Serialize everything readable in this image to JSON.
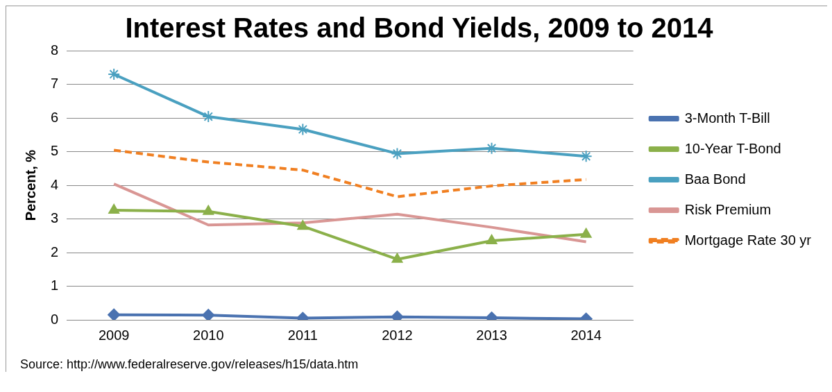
{
  "chart_data": {
    "type": "line",
    "title": "Interest Rates and Bond Yields, 2009 to 2014",
    "ylabel": "Percent, %",
    "categories": [
      "2009",
      "2010",
      "2011",
      "2012",
      "2013",
      "2014"
    ],
    "series": [
      {
        "name": "3-Month T-Bill",
        "color": "#4a72b0",
        "marker": "diamond",
        "line_style": "solid",
        "values": [
          0.15,
          0.14,
          0.05,
          0.09,
          0.06,
          0.03
        ]
      },
      {
        "name": "10-Year T-Bond",
        "color": "#8bb04a",
        "marker": "triangle",
        "line_style": "solid",
        "values": [
          3.26,
          3.22,
          2.78,
          1.8,
          2.35,
          2.54
        ]
      },
      {
        "name": "Baa Bond",
        "color": "#4aa0c0",
        "marker": "cross",
        "line_style": "solid",
        "values": [
          7.3,
          6.04,
          5.66,
          4.94,
          5.1,
          4.86
        ]
      },
      {
        "name": "Risk Premium",
        "color": "#d99694",
        "marker": "none",
        "line_style": "solid",
        "values": [
          4.04,
          2.82,
          2.88,
          3.14,
          2.75,
          2.32
        ]
      },
      {
        "name": "Mortgage Rate 30 yr",
        "color": "#f07f21",
        "marker": "none",
        "line_style": "dashed",
        "values": [
          5.04,
          4.69,
          4.45,
          3.66,
          3.98,
          4.17
        ]
      }
    ],
    "ylim": [
      0,
      8
    ],
    "yticks": [
      0,
      1,
      2,
      3,
      4,
      5,
      6,
      7,
      8
    ],
    "grid": "y",
    "legend": "right",
    "annotations": [
      "Source: http://www.federalreserve.gov/releases/h15/data.htm"
    ]
  }
}
